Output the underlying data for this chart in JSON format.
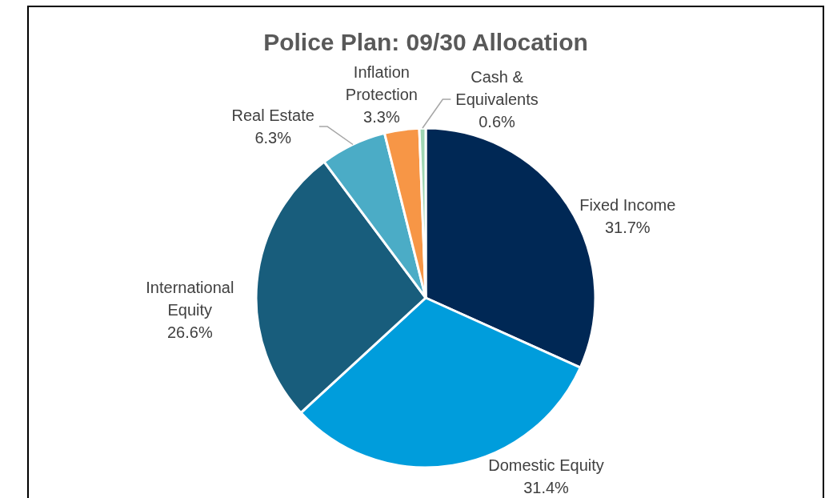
{
  "chart_data": {
    "type": "pie",
    "title": "Police Plan: 09/30 Allocation",
    "categories": [
      "Fixed Income",
      "Domestic Equity",
      "International Equity",
      "Real Estate",
      "Inflation Protection",
      "Cash & Equivalents"
    ],
    "values": [
      31.7,
      31.4,
      26.6,
      6.3,
      3.3,
      0.6
    ],
    "colors": [
      "#002855",
      "#009ddc",
      "#185d7c",
      "#4bacc6",
      "#f79646",
      "#9fd6b2"
    ],
    "value_labels": [
      "31.7%",
      "31.4%",
      "26.6%",
      "6.3%",
      "3.3%",
      "0.6%"
    ]
  }
}
